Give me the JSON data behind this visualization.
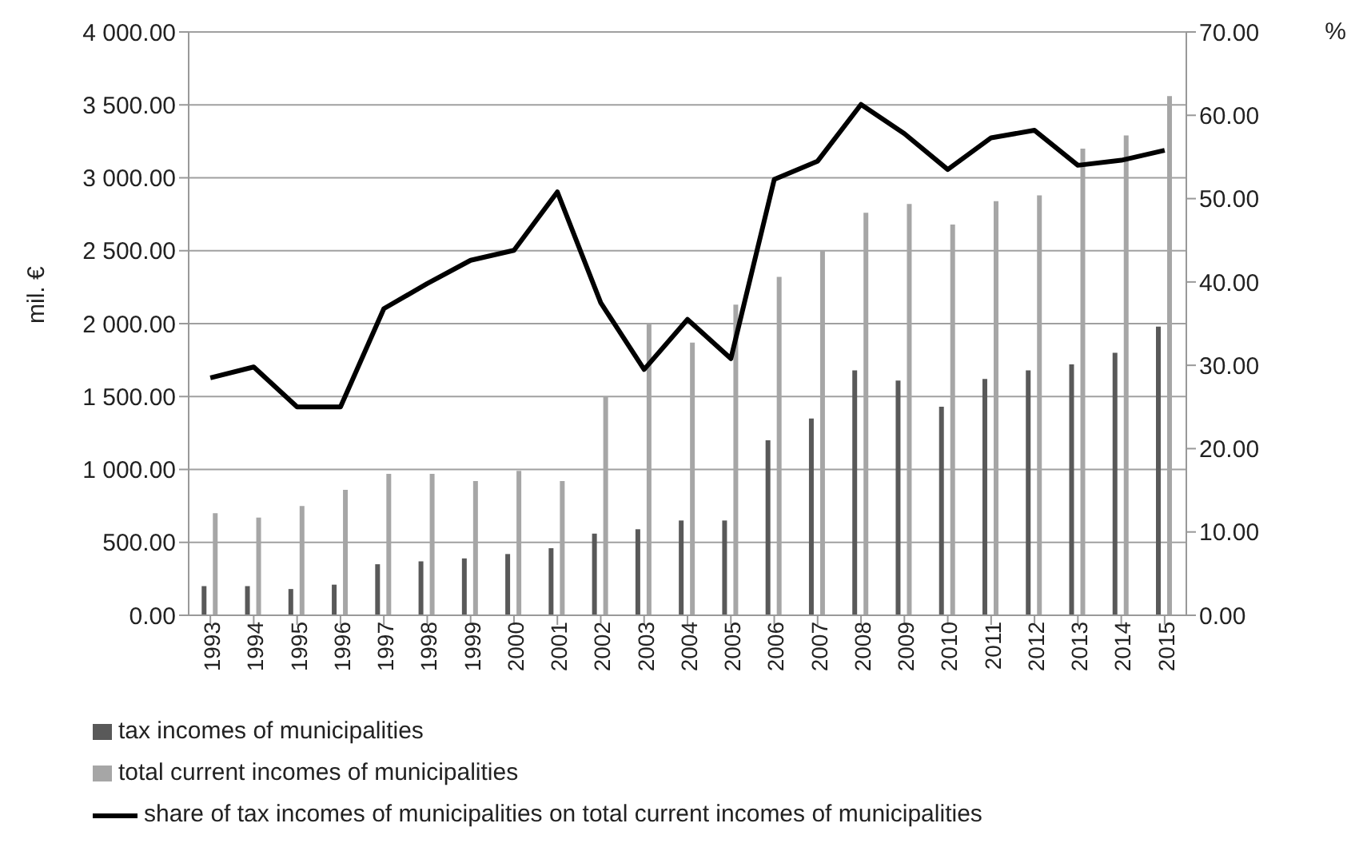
{
  "chart_data": {
    "type": "bar",
    "ylabel": "mil. €",
    "y2label": "%",
    "categories": [
      "1993",
      "1994",
      "1995",
      "1996",
      "1997",
      "1998",
      "1999",
      "2000",
      "2001",
      "2002",
      "2003",
      "2004",
      "2005",
      "2006",
      "2007",
      "2008",
      "2009",
      "2010",
      "2011",
      "2012",
      "2013",
      "2014",
      "2015"
    ],
    "series": [
      {
        "name": "tax incomes of municipalities",
        "color": "#595959",
        "values": [
          200,
          200,
          180,
          210,
          350,
          370,
          390,
          420,
          460,
          560,
          590,
          650,
          650,
          1200,
          1350,
          1680,
          1610,
          1430,
          1620,
          1680,
          1720,
          1800,
          1980
        ]
      },
      {
        "name": "total current incomes of municipalities",
        "color": "#a6a6a6",
        "values": [
          700,
          670,
          750,
          860,
          970,
          970,
          920,
          990,
          920,
          1500,
          2000,
          1870,
          2130,
          2320,
          2500,
          2760,
          2820,
          2680,
          2840,
          2880,
          3200,
          3290,
          3560
        ]
      },
      {
        "name": "share of tax incomes of municipalities on total current incomes of municipalities",
        "type": "line",
        "axis": "y2",
        "color": "#000000",
        "values": [
          28.5,
          29.8,
          25,
          25,
          36.8,
          39.8,
          42.6,
          43.8,
          50.8,
          37.5,
          29.5,
          35.5,
          30.8,
          52.3,
          54.5,
          61.3,
          57.8,
          53.5,
          57.3,
          58.2,
          54,
          54.6,
          55.8
        ]
      }
    ],
    "ylim": [
      0,
      4000
    ],
    "yticks": [
      {
        "value": 0,
        "label": "0.00"
      },
      {
        "value": 500,
        "label": "500.00"
      },
      {
        "value": 1000,
        "label": "1 000.00"
      },
      {
        "value": 1500,
        "label": "1 500.00"
      },
      {
        "value": 2000,
        "label": "2 000.00"
      },
      {
        "value": 2500,
        "label": "2 500.00"
      },
      {
        "value": 3000,
        "label": "3 000.00"
      },
      {
        "value": 3500,
        "label": "3 500.00"
      },
      {
        "value": 4000,
        "label": "4 000.00"
      }
    ],
    "y2lim": [
      0,
      70
    ],
    "y2ticks": [
      {
        "value": 0,
        "label": "0.00"
      },
      {
        "value": 10,
        "label": "10.00"
      },
      {
        "value": 20,
        "label": "20.00"
      },
      {
        "value": 30,
        "label": "30.00"
      },
      {
        "value": 40,
        "label": "40.00"
      },
      {
        "value": 50,
        "label": "50.00"
      },
      {
        "value": 60,
        "label": "60.00"
      },
      {
        "value": 70,
        "label": "70.00"
      }
    ],
    "grid": "y",
    "legend": "bottom left",
    "marker": "none",
    "line_style": "solid"
  }
}
